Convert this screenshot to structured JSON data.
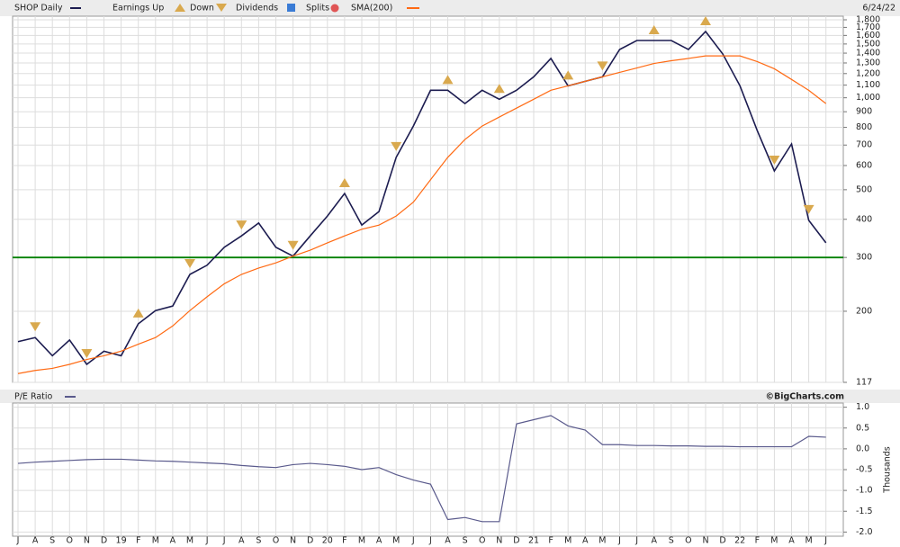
{
  "chart_data": [
    {
      "type": "line",
      "log_scale": true,
      "grid": true,
      "date": "6/24/22",
      "legend_items": [
        "Earnings Up",
        "Down",
        "Dividends",
        "Splits"
      ],
      "categories": [
        "J",
        "A",
        "S",
        "O",
        "N",
        "D",
        "19",
        "F",
        "M",
        "A",
        "M",
        "J",
        "J",
        "A",
        "S",
        "O",
        "N",
        "D",
        "20",
        "F",
        "M",
        "A",
        "M",
        "J",
        "J",
        "A",
        "S",
        "O",
        "N",
        "D",
        "21",
        "F",
        "M",
        "A",
        "M",
        "J",
        "J",
        "A",
        "S",
        "O",
        "N",
        "D",
        "22",
        "F",
        "M",
        "A",
        "M",
        "J"
      ],
      "series": [
        {
          "name": "SHOP Daily",
          "color": "#1c1c50",
          "values": [
            159,
            164,
            143,
            161,
            134,
            148,
            143,
            182,
            201,
            208,
            264,
            283,
            324,
            353,
            389,
            324,
            303,
            353,
            410,
            486,
            383,
            424,
            638,
            808,
            1058,
            1058,
            957,
            1058,
            989,
            1058,
            1171,
            1345,
            1094,
            1132,
            1171,
            1439,
            1540,
            1540,
            1540,
            1439,
            1648,
            1391,
            1094,
            782,
            576,
            706,
            397,
            335
          ]
        },
        {
          "name": "SMA(200)",
          "color": "#ff6a13",
          "values": [
            125,
            128,
            130,
            134,
            139,
            143,
            148,
            156,
            164,
            179,
            201,
            223,
            246,
            264,
            277,
            288,
            303,
            317,
            335,
            353,
            371,
            383,
            410,
            455,
            539,
            638,
            730,
            808,
            865,
            925,
            989,
            1058,
            1094,
            1132,
            1171,
            1211,
            1252,
            1295,
            1322,
            1345,
            1371,
            1371,
            1371,
            1314,
            1244,
            1148,
            1058,
            957
          ]
        }
      ],
      "earnings": [
        {
          "index": 1,
          "kind": "down"
        },
        {
          "index": 4,
          "kind": "down"
        },
        {
          "index": 7,
          "kind": "up"
        },
        {
          "index": 10,
          "kind": "down"
        },
        {
          "index": 13,
          "kind": "down"
        },
        {
          "index": 16,
          "kind": "down"
        },
        {
          "index": 19,
          "kind": "up"
        },
        {
          "index": 22,
          "kind": "down"
        },
        {
          "index": 25,
          "kind": "up"
        },
        {
          "index": 28,
          "kind": "up"
        },
        {
          "index": 32,
          "kind": "up"
        },
        {
          "index": 34,
          "kind": "down"
        },
        {
          "index": 37,
          "kind": "up"
        },
        {
          "index": 40,
          "kind": "up"
        },
        {
          "index": 44,
          "kind": "down"
        },
        {
          "index": 46,
          "kind": "down"
        }
      ],
      "hline": {
        "value": 300,
        "color": "#008000"
      },
      "ylim": [
        117,
        1800
      ],
      "yticks": [
        {
          "value": 1800,
          "label": "1,800"
        },
        {
          "value": 1700,
          "label": "1,700"
        },
        {
          "value": 1600,
          "label": "1,600"
        },
        {
          "value": 1500,
          "label": "1,500"
        },
        {
          "value": 1400,
          "label": "1,400"
        },
        {
          "value": 1300,
          "label": "1,300"
        },
        {
          "value": 1200,
          "label": "1,200"
        },
        {
          "value": 1100,
          "label": "1,100"
        },
        {
          "value": 1000,
          "label": "1,000"
        },
        900,
        800,
        700,
        600,
        500,
        400,
        300,
        200,
        117
      ]
    },
    {
      "type": "line",
      "log_scale": false,
      "grid": true,
      "credit": "©BigCharts.com",
      "y_label": "Thousands",
      "series": [
        {
          "name": "P/E Ratio",
          "color": "#5a5a8c",
          "values": [
            -0.35,
            -0.32,
            -0.3,
            -0.28,
            -0.26,
            -0.25,
            -0.25,
            -0.27,
            -0.29,
            -0.3,
            -0.32,
            -0.34,
            -0.36,
            -0.4,
            -0.43,
            -0.45,
            -0.38,
            -0.35,
            -0.38,
            -0.42,
            -0.5,
            -0.45,
            -0.62,
            -0.75,
            -0.85,
            -1.7,
            -1.65,
            -1.75,
            -1.75,
            0.6,
            0.7,
            0.8,
            0.55,
            0.45,
            0.1,
            0.1,
            0.08,
            0.08,
            0.07,
            0.07,
            0.06,
            0.06,
            0.05,
            0.05,
            0.05,
            0.05,
            0.3,
            0.28
          ]
        }
      ],
      "ylim": [
        -2.1,
        1.1
      ],
      "yticks": [
        {
          "value": 1,
          "label": "1.0"
        },
        0.5,
        {
          "value": 0,
          "label": "0.0"
        },
        -0.5,
        {
          "value": -1,
          "label": "-1.0"
        },
        -1.5,
        {
          "value": -2,
          "label": "-2.0"
        }
      ]
    }
  ]
}
